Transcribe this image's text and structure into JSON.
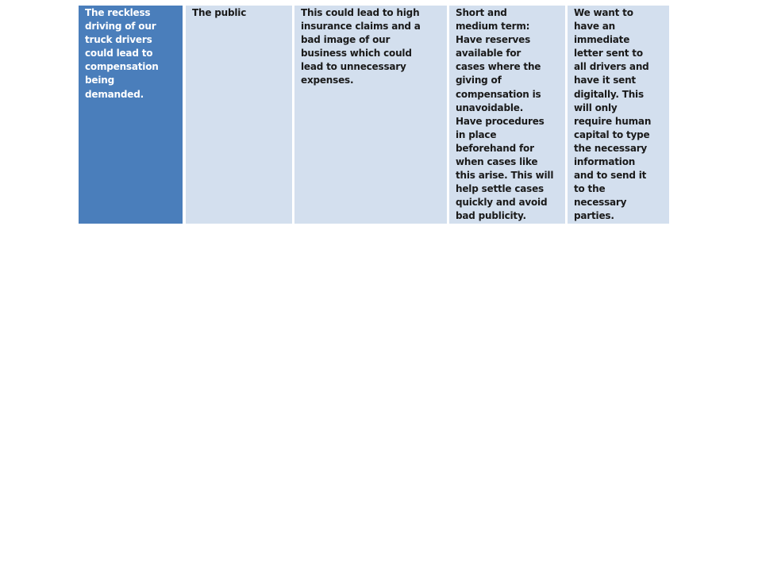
{
  "table": {
    "row": {
      "risk": "The reckless\ndriving of our\ntruck drivers\ncould lead to\ncompensation\nbeing\ndemanded.",
      "affected": "The public",
      "impact": "This could lead to high\ninsurance claims and a\nbad image of our\nbusiness which could\nlead to unnecessary\nexpenses.",
      "strategy": "Short and\nmedium term:\nHave reserves\navailable for\ncases where the\ngiving of\ncompensation is\nunavoidable.\nHave procedures\nin place\nbeforehand for\nwhen cases like\nthis arise. This will\nhelp settle cases\nquickly and avoid\nbad publicity.",
      "action": "We want to\nhave an\nimmediate\nletter sent to\nall drivers and\nhave it sent\ndigitally. This\nwill only\nrequire human\ncapital to type\nthe necessary\ninformation\nand to send it\nto the\nnecessary\nparties."
    }
  },
  "colors": {
    "header_cell": "#4a7ebb",
    "body_cell": "#d3dfee"
  }
}
